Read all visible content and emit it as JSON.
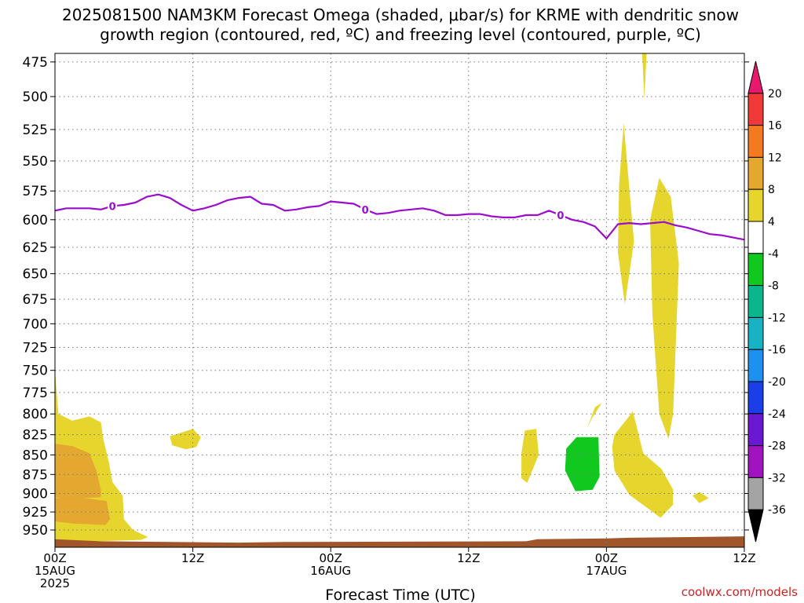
{
  "chart_data": {
    "type": "heatmap",
    "title": "2025081500 NAM3KM Forecast Omega (shaded, μbar/s) for KRME with dendritic snow growth region (contoured, red, ºC) and freezing level (contoured, purple, ºC)",
    "title_lines": [
      "2025081500 NAM3KM Forecast Omega (shaded, μbar/s) for KRME with dendritic snow",
      "growth region (contoured, red, ºC) and freezing level (contoured, purple, ºC)"
    ],
    "xlabel": "Forecast Time (UTC)",
    "ylabel": "",
    "credit": "coolwx.com/models",
    "x_unit": "forecast hour",
    "xlim": [
      0,
      60
    ],
    "y_unit": "hPa",
    "ylim": [
      970,
      468
    ],
    "y_scale": "log",
    "grid": true,
    "y_ticks": [
      475,
      500,
      525,
      550,
      575,
      600,
      625,
      650,
      675,
      700,
      725,
      750,
      775,
      800,
      825,
      850,
      875,
      900,
      925,
      950
    ],
    "x_ticks": [
      {
        "hour": 0,
        "lines": [
          "00Z",
          "15AUG",
          "2025"
        ]
      },
      {
        "hour": 12,
        "lines": [
          "12Z"
        ]
      },
      {
        "hour": 24,
        "lines": [
          "00Z",
          "16AUG"
        ]
      },
      {
        "hour": 36,
        "lines": [
          "12Z"
        ]
      },
      {
        "hour": 48,
        "lines": [
          "00Z",
          "17AUG"
        ]
      },
      {
        "hour": 60,
        "lines": [
          "12Z"
        ]
      }
    ],
    "colorbar": {
      "labels": [
        "20",
        "16",
        "12",
        "8",
        "4",
        "-4",
        "-8",
        "-12",
        "-16",
        "-20",
        "-24",
        "-28",
        "-32",
        "-36"
      ],
      "colors": [
        "#e8186e",
        "#f03a3a",
        "#f47a22",
        "#e4a830",
        "#e6d52c",
        "#ffffff",
        "#10c81e",
        "#0cb68c",
        "#18b2c2",
        "#1e90f0",
        "#1c3ee6",
        "#6a18d2",
        "#a014c0",
        "#a4a4a4",
        "#000000"
      ]
    },
    "series": [
      {
        "name": "freezing level (0 ºC)",
        "contour_label": "0",
        "color": "#9b0ccc",
        "x": [
          0,
          1,
          2,
          3,
          4,
          5,
          6,
          7,
          8,
          9,
          10,
          11,
          12,
          13,
          14,
          15,
          16,
          17,
          18,
          19,
          20,
          21,
          22,
          23,
          24,
          25,
          26,
          27,
          28,
          29,
          30,
          31,
          32,
          33,
          34,
          35,
          36,
          37,
          38,
          39,
          40,
          41,
          42,
          43,
          44,
          45,
          46,
          47,
          48,
          49,
          50,
          51,
          52,
          53,
          54,
          55,
          56,
          57,
          58,
          59,
          60
        ],
        "y": [
          592,
          590,
          590,
          590,
          591,
          588,
          587,
          585,
          580,
          578,
          581,
          587,
          592,
          590,
          587,
          583,
          581,
          580,
          586,
          587,
          592,
          591,
          589,
          588,
          584,
          585,
          586,
          591,
          595,
          594,
          592,
          591,
          590,
          592,
          596,
          596,
          595,
          595,
          597,
          598,
          598,
          596,
          596,
          592,
          596,
          600,
          602,
          606,
          617,
          604,
          603,
          604,
          603,
          602,
          605,
          607,
          610,
          613,
          614,
          616,
          618
        ]
      }
    ],
    "omega_regions": [
      {
        "value_range": "4 to 8",
        "color": "#e6d52c",
        "points": [
          [
            0,
            970
          ],
          [
            0,
            750
          ],
          [
            0.3,
            800
          ],
          [
            1.5,
            808
          ],
          [
            3,
            803
          ],
          [
            4,
            810
          ],
          [
            4.2,
            830
          ],
          [
            4.7,
            860
          ],
          [
            5,
            885
          ],
          [
            5.9,
            903
          ],
          [
            6,
            935
          ],
          [
            6.8,
            950
          ],
          [
            8.1,
            960
          ],
          [
            7.5,
            964
          ],
          [
            0,
            968
          ]
        ]
      },
      {
        "value_range": "8 to 12",
        "color": "#e4a830",
        "points": [
          [
            0,
            836
          ],
          [
            1.5,
            839
          ],
          [
            3,
            848
          ],
          [
            3.6,
            870
          ],
          [
            4,
            895
          ],
          [
            4,
            905
          ],
          [
            1,
            907
          ],
          [
            0,
            905
          ]
        ]
      },
      {
        "value_range": "8 to 12",
        "color": "#e4a830",
        "points": [
          [
            0,
            906
          ],
          [
            2.5,
            906
          ],
          [
            4.5,
            910
          ],
          [
            4.8,
            935
          ],
          [
            4.4,
            943
          ],
          [
            1.5,
            941
          ],
          [
            0,
            938
          ]
        ]
      },
      {
        "value_range": "4 to 8",
        "color": "#e6d52c",
        "points": [
          [
            10,
            827
          ],
          [
            12,
            818
          ],
          [
            12.7,
            828
          ],
          [
            12.3,
            840
          ],
          [
            11.4,
            843
          ],
          [
            10.2,
            838
          ]
        ]
      },
      {
        "value_range": "4 to 8",
        "color": "#e6d52c",
        "points": [
          [
            40.6,
            848
          ],
          [
            40.9,
            820
          ],
          [
            41.9,
            818
          ],
          [
            42.1,
            850
          ],
          [
            41.1,
            886
          ],
          [
            40.6,
            880
          ]
        ]
      },
      {
        "value_range": "4 to 8",
        "color": "#e6d52c",
        "points": [
          [
            46.3,
            818
          ],
          [
            47,
            792
          ],
          [
            47.6,
            787
          ],
          [
            46.7,
            806
          ]
        ]
      },
      {
        "value_range": "4 to 8",
        "color": "#e6d52c",
        "points": [
          [
            48.7,
            825
          ],
          [
            50.3,
            797
          ],
          [
            51.2,
            848
          ],
          [
            52.8,
            868
          ],
          [
            53.8,
            895
          ],
          [
            53.8,
            915
          ],
          [
            52.7,
            933
          ],
          [
            51.6,
            920
          ],
          [
            50,
            902
          ],
          [
            48.7,
            870
          ],
          [
            48.5,
            840
          ]
        ]
      },
      {
        "value_range": "4 to 8",
        "color": "#e6d52c",
        "points": [
          [
            49.1,
            570
          ],
          [
            49.5,
            520
          ],
          [
            50.4,
            620
          ],
          [
            49.6,
            680
          ],
          [
            49,
            630
          ]
        ]
      },
      {
        "value_range": "4 to 8",
        "color": "#e6d52c",
        "points": [
          [
            52,
            690
          ],
          [
            51.8,
            600
          ],
          [
            52.6,
            564
          ],
          [
            53.6,
            580
          ],
          [
            54.3,
            640
          ],
          [
            53.8,
            800
          ],
          [
            53.4,
            830
          ],
          [
            52.6,
            800
          ]
        ]
      },
      {
        "value_range": "4 to 8",
        "color": "#e6d52c",
        "points": [
          [
            51.3,
            502
          ],
          [
            51.1,
            468
          ],
          [
            51.5,
            468
          ]
        ]
      },
      {
        "value_range": "4 to 8",
        "color": "#e6d52c",
        "points": [
          [
            55.5,
            903
          ],
          [
            56.1,
            898
          ],
          [
            56.9,
            906
          ],
          [
            56.1,
            913
          ]
        ]
      },
      {
        "value_range": "-8 to -4",
        "color": "#10c81e",
        "points": [
          [
            44.5,
            842
          ],
          [
            45.4,
            828
          ],
          [
            47.3,
            828
          ],
          [
            47.4,
            878
          ],
          [
            46.8,
            895
          ],
          [
            45.3,
            897
          ],
          [
            44.4,
            870
          ]
        ]
      }
    ],
    "terrain": {
      "color": "#a0562a",
      "points": [
        [
          0,
          963
        ],
        [
          4,
          966
        ],
        [
          16,
          968
        ],
        [
          20,
          967
        ],
        [
          41,
          966
        ],
        [
          42,
          963
        ],
        [
          48,
          962
        ],
        [
          50,
          961
        ],
        [
          60,
          959
        ],
        [
          60,
          980
        ],
        [
          0,
          980
        ]
      ]
    }
  }
}
